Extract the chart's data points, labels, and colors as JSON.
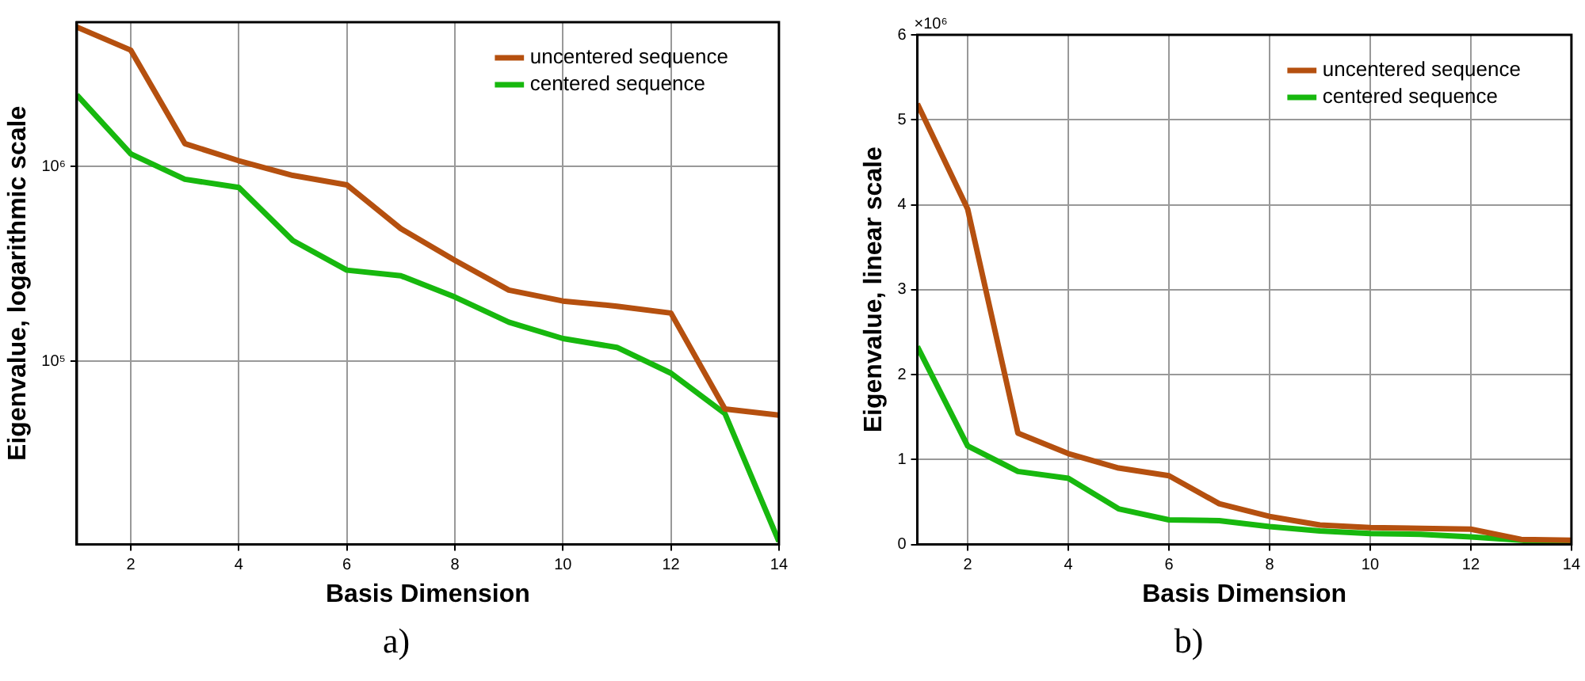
{
  "chart_data": [
    {
      "type": "line",
      "xlabel": "Basis Dimension",
      "ylabel": "Eigenvalue, logarithmic scale",
      "log": "y",
      "x": [
        1,
        2,
        3,
        4,
        5,
        6,
        7,
        8,
        9,
        10,
        11,
        12,
        13,
        14
      ],
      "series": [
        {
          "name": "uncentered sequence",
          "color": "#b5500f",
          "values": [
            5190000,
            3950000,
            1310000,
            1070000,
            900000,
            805000,
            480000,
            330000,
            232000,
            204000,
            192000,
            177000,
            57000,
            53000
          ]
        },
        {
          "name": "centered sequence",
          "color": "#17b80e",
          "values": [
            2330000,
            1160000,
            860000,
            780000,
            417000,
            294000,
            275000,
            214000,
            159000,
            131000,
            118000,
            87000,
            54000,
            11900
          ]
        }
      ],
      "xlim": [
        1,
        14
      ],
      "xticks": [
        2,
        4,
        6,
        8,
        10,
        12,
        14
      ],
      "ylim": [
        11500,
        5500000
      ],
      "yticks": [
        {
          "value": 100000,
          "label": "10⁵"
        },
        {
          "value": 1000000,
          "label": "10⁶"
        }
      ],
      "grid": true,
      "legend": "top right",
      "marker": "none",
      "line_style": "solid",
      "annotations": [
        "a)"
      ]
    },
    {
      "type": "line",
      "xlabel": "Basis Dimension",
      "ylabel": "Eigenvalue, linear scale",
      "x": [
        1,
        2,
        3,
        4,
        5,
        6,
        7,
        8,
        9,
        10,
        11,
        12,
        13,
        14
      ],
      "series": [
        {
          "name": "uncentered sequence",
          "color": "#b5500f",
          "values": [
            5.19,
            3.95,
            1.31,
            1.07,
            0.9,
            0.81,
            0.48,
            0.33,
            0.23,
            0.2,
            0.19,
            0.18,
            0.06,
            0.05
          ]
        },
        {
          "name": "centered sequence",
          "color": "#17b80e",
          "values": [
            2.33,
            1.16,
            0.86,
            0.78,
            0.42,
            0.29,
            0.28,
            0.21,
            0.16,
            0.13,
            0.12,
            0.09,
            0.05,
            0.01
          ]
        }
      ],
      "xlim": [
        1,
        14
      ],
      "xticks": [
        2,
        4,
        6,
        8,
        10,
        12,
        14
      ],
      "ylim": [
        0,
        6
      ],
      "yticks": [
        0,
        1,
        2,
        3,
        4,
        5,
        6
      ],
      "grid": true,
      "legend": "top right",
      "marker": "none",
      "line_style": "solid",
      "annotations": [
        "×10⁶",
        "b)"
      ]
    }
  ]
}
